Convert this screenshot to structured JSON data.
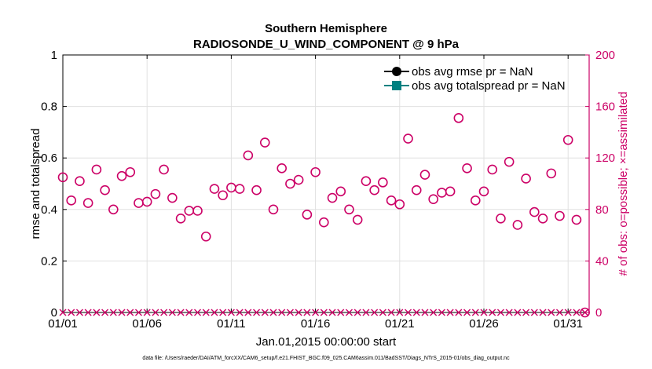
{
  "colors": {
    "left_axis": "#000000",
    "right_axis": "#cc0066",
    "marker": "#cc0066",
    "rmse": "#000000",
    "spread": "#008080",
    "grid": "#e0e0e0"
  },
  "chart_data": {
    "type": "scatter",
    "title": "Southern Hemisphere",
    "subtitle": "RADIOSONDE_U_WIND_COMPONENT @ 9 hPa",
    "xlabel": "Jan.01,2015 00:00:00 start",
    "ylabel_left": "rmse and totalspread",
    "ylabel_right": "# of obs: o=possible; ×=assimilated",
    "xlim": [
      0,
      31.25
    ],
    "ylim_left": [
      0,
      1
    ],
    "ylim_right": [
      0,
      200
    ],
    "grid": true,
    "legend_position": "top-right",
    "x_ticks": [
      0,
      5,
      10,
      15,
      20,
      25,
      30
    ],
    "x_tick_labels": [
      "01/01",
      "01/06",
      "01/11",
      "01/16",
      "01/21",
      "01/26",
      "01/31"
    ],
    "y_left_ticks": [
      0,
      0.2,
      0.4,
      0.6,
      0.8,
      1
    ],
    "y_left_tick_labels": [
      "0",
      "0.2",
      "0.4",
      "0.6",
      "0.8",
      "1"
    ],
    "y_right_ticks": [
      0,
      40,
      80,
      120,
      160,
      200
    ],
    "y_right_tick_labels": [
      "0",
      "40",
      "80",
      "120",
      "160",
      "200"
    ],
    "legend": [
      {
        "label": "obs avg rmse pr = NaN",
        "color": "#000000",
        "marker": "circle"
      },
      {
        "label": "obs avg totalspread pr = NaN",
        "color": "#008080",
        "marker": "square"
      }
    ],
    "series": [
      {
        "name": "possible",
        "axis": "right",
        "marker": "circle",
        "x": [
          0,
          0.5,
          1,
          1.5,
          2,
          2.5,
          3,
          3.5,
          4,
          4.5,
          5,
          5.5,
          6,
          6.5,
          7,
          7.5,
          8,
          8.5,
          9,
          9.5,
          10,
          10.5,
          11,
          11.5,
          12,
          12.5,
          13,
          13.5,
          14,
          14.5,
          15,
          15.5,
          16,
          16.5,
          17,
          17.5,
          18,
          18.5,
          19,
          19.5,
          20,
          20.5,
          21,
          21.5,
          22,
          22.5,
          23,
          23.5,
          24,
          24.5,
          25,
          25.5,
          26,
          26.5,
          27,
          27.5,
          28,
          28.5,
          29,
          29.5,
          30,
          30.5,
          31
        ],
        "values": [
          105,
          87,
          102,
          85,
          111,
          95,
          80,
          106,
          109,
          85,
          86,
          92,
          111,
          89,
          73,
          79,
          79,
          59,
          96,
          91,
          97,
          96,
          122,
          95,
          132,
          80,
          112,
          100,
          103,
          76,
          109,
          70,
          89,
          94,
          80,
          72,
          102,
          95,
          101,
          87,
          84,
          135,
          95,
          107,
          88,
          93,
          94,
          151,
          112,
          87,
          94,
          111,
          73,
          117,
          68,
          104,
          78,
          73,
          108,
          75,
          134,
          72,
          0
        ],
        "axis_note": ""
      },
      {
        "name": "assimilated",
        "axis": "right",
        "marker": "x",
        "x": [
          0,
          0.5,
          1,
          1.5,
          2,
          2.5,
          3,
          3.5,
          4,
          4.5,
          5,
          5.5,
          6,
          6.5,
          7,
          7.5,
          8,
          8.5,
          9,
          9.5,
          10,
          10.5,
          11,
          11.5,
          12,
          12.5,
          13,
          13.5,
          14,
          14.5,
          15,
          15.5,
          16,
          16.5,
          17,
          17.5,
          18,
          18.5,
          19,
          19.5,
          20,
          20.5,
          21,
          21.5,
          22,
          22.5,
          23,
          23.5,
          24,
          24.5,
          25,
          25.5,
          26,
          26.5,
          27,
          27.5,
          28,
          28.5,
          29,
          29.5,
          30,
          30.5,
          31
        ],
        "values": [
          0,
          0,
          0,
          0,
          0,
          0,
          0,
          0,
          0,
          0,
          0,
          0,
          0,
          0,
          0,
          0,
          0,
          0,
          0,
          0,
          0,
          0,
          0,
          0,
          0,
          0,
          0,
          0,
          0,
          0,
          0,
          0,
          0,
          0,
          0,
          0,
          0,
          0,
          0,
          0,
          0,
          0,
          0,
          0,
          0,
          0,
          0,
          0,
          0,
          0,
          0,
          0,
          0,
          0,
          0,
          0,
          0,
          0,
          0,
          0,
          0,
          0,
          0
        ]
      }
    ],
    "footer": "data file: /Users/raeder/DAI/ATM_forcXX/CAM6_setup/f.e21.FHIST_BGC.f09_025.CAM6assim.011/BadSST/Diags_NTrS_2015-01/obs_diag_output.nc"
  }
}
